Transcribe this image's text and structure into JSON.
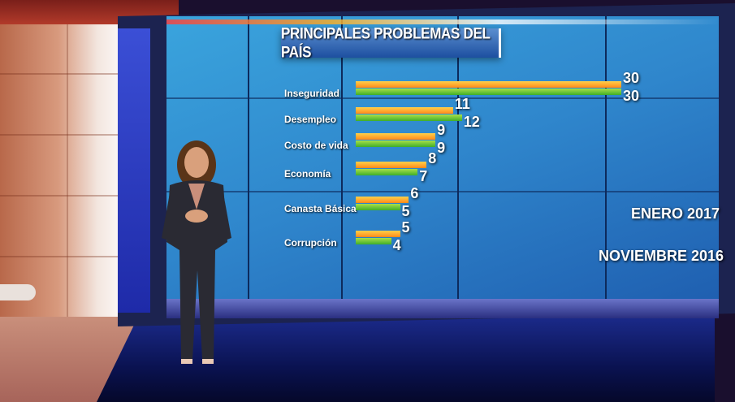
{
  "chart_data": {
    "type": "bar",
    "orientation": "horizontal",
    "title": "PRINCIPALES PROBLEMAS DEL PAÍS",
    "categories": [
      "Inseguridad",
      "Desempleo",
      "Costo de vida",
      "Economía",
      "Canasta Básica",
      "Corrupción"
    ],
    "series": [
      {
        "name": "ENERO 2017",
        "values": [
          30,
          11,
          9,
          8,
          6,
          5
        ],
        "color": "#ff9a1f"
      },
      {
        "name": "NOVIEMBRE 2016",
        "values": [
          30,
          12,
          9,
          7,
          5,
          4
        ],
        "color": "#3fae2a"
      }
    ],
    "xlim": [
      0,
      30
    ],
    "legend_placement": "right",
    "grid": true
  },
  "colors": {
    "screen": "#2f86cc",
    "title_box": "#1d4fa0",
    "floor": "#0a1250"
  }
}
